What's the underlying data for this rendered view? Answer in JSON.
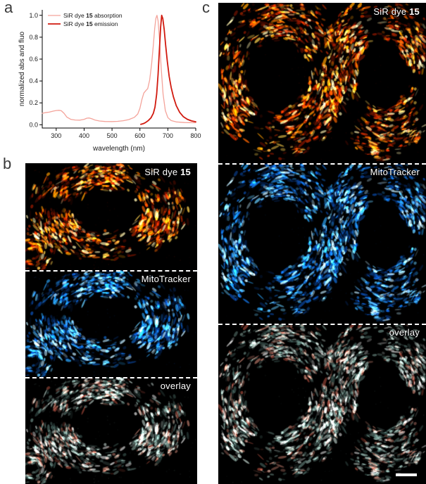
{
  "figure": {
    "panel_a_label": "a",
    "panel_b_label": "b",
    "panel_c_label": "c"
  },
  "chart_data": {
    "type": "line",
    "title": "",
    "xlabel": "wavelength (nm)",
    "ylabel": "normalized abs and fluo",
    "xlim": [
      250,
      800
    ],
    "ylim": [
      0,
      1.0
    ],
    "x_ticks": [
      300,
      400,
      500,
      600,
      700,
      800
    ],
    "y_ticks": [
      0.0,
      0.2,
      0.4,
      0.6,
      0.8,
      1.0
    ],
    "grid": false,
    "legend_position": "top-left",
    "series": [
      {
        "name": "SiR dye 15 absorption",
        "legend_pre": "SiR dye ",
        "legend_bold": "15",
        "legend_post": " absorption",
        "color": "#f4a39a",
        "width": 1.3,
        "x": [
          250,
          260,
          275,
          290,
          300,
          310,
          318,
          328,
          338,
          352,
          368,
          385,
          400,
          410,
          418,
          428,
          440,
          455,
          475,
          500,
          520,
          540,
          560,
          580,
          592,
          600,
          607,
          614,
          621,
          628,
          635,
          642,
          648,
          653,
          657,
          661,
          665,
          670,
          676,
          683,
          691,
          700,
          712,
          730,
          760,
          800
        ],
        "y": [
          0.105,
          0.11,
          0.115,
          0.125,
          0.13,
          0.132,
          0.128,
          0.105,
          0.07,
          0.05,
          0.043,
          0.042,
          0.05,
          0.06,
          0.062,
          0.054,
          0.042,
          0.034,
          0.03,
          0.029,
          0.031,
          0.037,
          0.047,
          0.068,
          0.098,
          0.15,
          0.23,
          0.29,
          0.312,
          0.33,
          0.41,
          0.56,
          0.73,
          0.88,
          0.97,
          1.0,
          0.95,
          0.78,
          0.52,
          0.28,
          0.13,
          0.065,
          0.038,
          0.026,
          0.02,
          0.018
        ]
      },
      {
        "name": "SiR dye 15 emission",
        "legend_pre": "SiR dye ",
        "legend_bold": "15",
        "legend_post": " emission",
        "color": "#d1190e",
        "width": 1.8,
        "x": [
          603,
          612,
          620,
          630,
          640,
          648,
          654,
          660,
          665,
          670,
          674,
          678,
          682,
          687,
          692,
          698,
          705,
          712,
          720,
          730,
          742,
          755,
          770,
          785,
          800
        ],
        "y": [
          0.004,
          0.01,
          0.02,
          0.038,
          0.065,
          0.105,
          0.16,
          0.28,
          0.46,
          0.7,
          0.89,
          1.0,
          0.97,
          0.87,
          0.73,
          0.58,
          0.44,
          0.34,
          0.255,
          0.175,
          0.115,
          0.075,
          0.05,
          0.035,
          0.027
        ]
      }
    ]
  },
  "panel_b": {
    "images": [
      {
        "label_pre": "SiR dye ",
        "label_bold": "15"
      },
      {
        "label_pre": "MitoTracker",
        "label_bold": ""
      },
      {
        "label_pre": "overlay",
        "label_bold": ""
      }
    ]
  },
  "panel_c": {
    "images": [
      {
        "label_pre": "SiR dye ",
        "label_bold": "15"
      },
      {
        "label_pre": "MitoTracker",
        "label_bold": ""
      },
      {
        "label_pre": "overlay",
        "label_bold": ""
      }
    ]
  },
  "microscopy": {
    "background": "#000000",
    "palettes": {
      "sir": [
        "#4a0a00",
        "#901800",
        "#cc2e00",
        "#ff6600",
        "#ff9d00",
        "#ffd24d",
        "#fff2b0"
      ],
      "mito": [
        "#03204d",
        "#0a4aa8",
        "#1272e0",
        "#2aa0f2",
        "#66ccff",
        "#bfeaff"
      ],
      "overlay": [
        "#3f5a55",
        "#6e8f88",
        "#9dbdb4",
        "#cfe2db",
        "#a84b3c",
        "#cc8473",
        "#e8e8e8"
      ]
    }
  }
}
